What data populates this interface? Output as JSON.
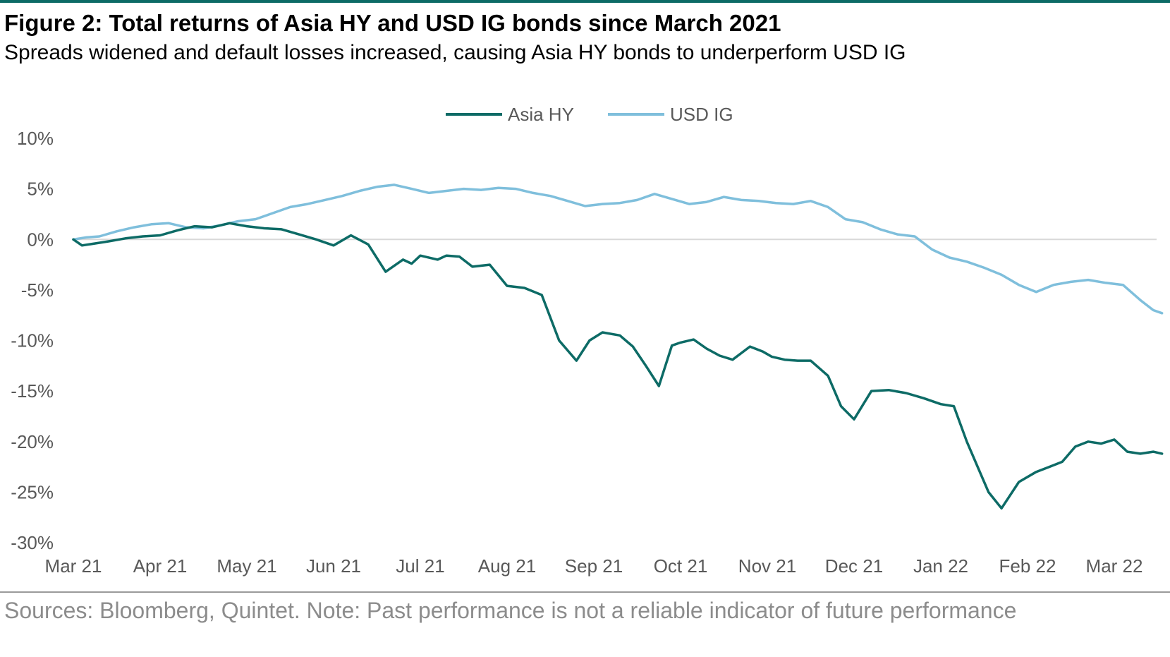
{
  "header": {
    "title": "Figure 2: Total returns of Asia HY and USD IG bonds since March 2021",
    "subtitle": "Spreads widened and default losses increased, causing Asia HY bonds to underperform USD IG"
  },
  "footer": {
    "source": "Sources: Bloomberg, Quintet. Note: Past performance is not a reliable indicator of future performance"
  },
  "colors": {
    "accent_rule": "#0d6b66",
    "asia_hy": "#0d6b66",
    "usd_ig": "#7fbfdc",
    "zero_line": "#d9d9d9",
    "axis_text": "#595959"
  },
  "chart_data": {
    "type": "line",
    "xlabel": "",
    "ylabel": "",
    "x_ticks": [
      "Mar 21",
      "Apr 21",
      "May 21",
      "Jun 21",
      "Jul 21",
      "Aug 21",
      "Sep 21",
      "Oct 21",
      "Nov 21",
      "Dec 21",
      "Jan 22",
      "Feb 22",
      "Mar 22"
    ],
    "y_ticks": [
      "10%",
      "5%",
      "0%",
      "-5%",
      "-10%",
      "-15%",
      "-20%",
      "-25%",
      "-30%"
    ],
    "ylim": [
      -30,
      10
    ],
    "xlim_months": [
      0,
      12.55
    ],
    "grid": false,
    "legend": {
      "position": "top-center",
      "entries": [
        "Asia HY",
        "USD IG"
      ]
    },
    "series": [
      {
        "name": "Asia HY",
        "x": [
          0,
          0.1,
          0.25,
          0.4,
          0.6,
          0.8,
          1.0,
          1.2,
          1.4,
          1.6,
          1.8,
          2.0,
          2.2,
          2.4,
          2.6,
          2.8,
          3.0,
          3.2,
          3.4,
          3.6,
          3.8,
          3.9,
          4.0,
          4.2,
          4.3,
          4.45,
          4.6,
          4.8,
          5.0,
          5.2,
          5.4,
          5.6,
          5.8,
          5.95,
          6.1,
          6.3,
          6.45,
          6.6,
          6.75,
          6.9,
          7.0,
          7.15,
          7.3,
          7.45,
          7.6,
          7.8,
          7.95,
          8.05,
          8.2,
          8.35,
          8.5,
          8.7,
          8.85,
          9.0,
          9.2,
          9.4,
          9.6,
          9.8,
          10.0,
          10.15,
          10.3,
          10.4,
          10.55,
          10.7,
          10.9,
          11.1,
          11.25,
          11.4,
          11.55,
          11.7,
          11.85,
          12.0,
          12.15,
          12.3,
          12.45,
          12.55
        ],
        "values": [
          0,
          -0.6,
          -0.4,
          -0.2,
          0.1,
          0.3,
          0.4,
          0.9,
          1.3,
          1.2,
          1.6,
          1.3,
          1.1,
          1.0,
          0.5,
          0.0,
          -0.6,
          0.4,
          -0.5,
          -3.2,
          -2.0,
          -2.4,
          -1.6,
          -2.0,
          -1.6,
          -1.7,
          -2.7,
          -2.5,
          -4.6,
          -4.8,
          -5.5,
          -10.0,
          -12.0,
          -10.0,
          -9.2,
          -9.5,
          -10.6,
          -12.5,
          -14.5,
          -10.5,
          -10.2,
          -9.9,
          -10.8,
          -11.5,
          -11.9,
          -10.6,
          -11.1,
          -11.6,
          -11.9,
          -12.0,
          -12.0,
          -13.5,
          -16.5,
          -17.8,
          -15.0,
          -14.9,
          -15.2,
          -15.7,
          -16.3,
          -16.5,
          -20.0,
          -22.0,
          -25.0,
          -26.6,
          -24.0,
          -23.0,
          -22.5,
          -22.0,
          -20.5,
          -20.0,
          -20.2,
          -19.8,
          -21.0,
          -21.2,
          -21.0,
          -21.2
        ]
      },
      {
        "name": "USD IG",
        "x": [
          0,
          0.15,
          0.3,
          0.5,
          0.7,
          0.9,
          1.1,
          1.3,
          1.5,
          1.7,
          1.9,
          2.1,
          2.3,
          2.5,
          2.7,
          2.9,
          3.1,
          3.3,
          3.5,
          3.7,
          3.9,
          4.1,
          4.3,
          4.5,
          4.7,
          4.9,
          5.1,
          5.3,
          5.5,
          5.7,
          5.9,
          6.1,
          6.3,
          6.5,
          6.7,
          6.9,
          7.1,
          7.3,
          7.5,
          7.7,
          7.9,
          8.1,
          8.3,
          8.5,
          8.7,
          8.9,
          9.1,
          9.3,
          9.5,
          9.7,
          9.9,
          10.1,
          10.3,
          10.5,
          10.7,
          10.9,
          11.1,
          11.3,
          11.5,
          11.7,
          11.9,
          12.1,
          12.3,
          12.45,
          12.55
        ],
        "values": [
          0,
          0.2,
          0.3,
          0.8,
          1.2,
          1.5,
          1.6,
          1.2,
          1.1,
          1.4,
          1.8,
          2.0,
          2.6,
          3.2,
          3.5,
          3.9,
          4.3,
          4.8,
          5.2,
          5.4,
          5.0,
          4.6,
          4.8,
          5.0,
          4.9,
          5.1,
          5.0,
          4.6,
          4.3,
          3.8,
          3.3,
          3.5,
          3.6,
          3.9,
          4.5,
          4.0,
          3.5,
          3.7,
          4.2,
          3.9,
          3.8,
          3.6,
          3.5,
          3.8,
          3.2,
          2.0,
          1.7,
          1.0,
          0.5,
          0.3,
          -1.0,
          -1.8,
          -2.2,
          -2.8,
          -3.5,
          -4.5,
          -5.2,
          -4.5,
          -4.2,
          -4.0,
          -4.3,
          -4.5,
          -6.0,
          -7.0,
          -7.3
        ]
      }
    ]
  }
}
